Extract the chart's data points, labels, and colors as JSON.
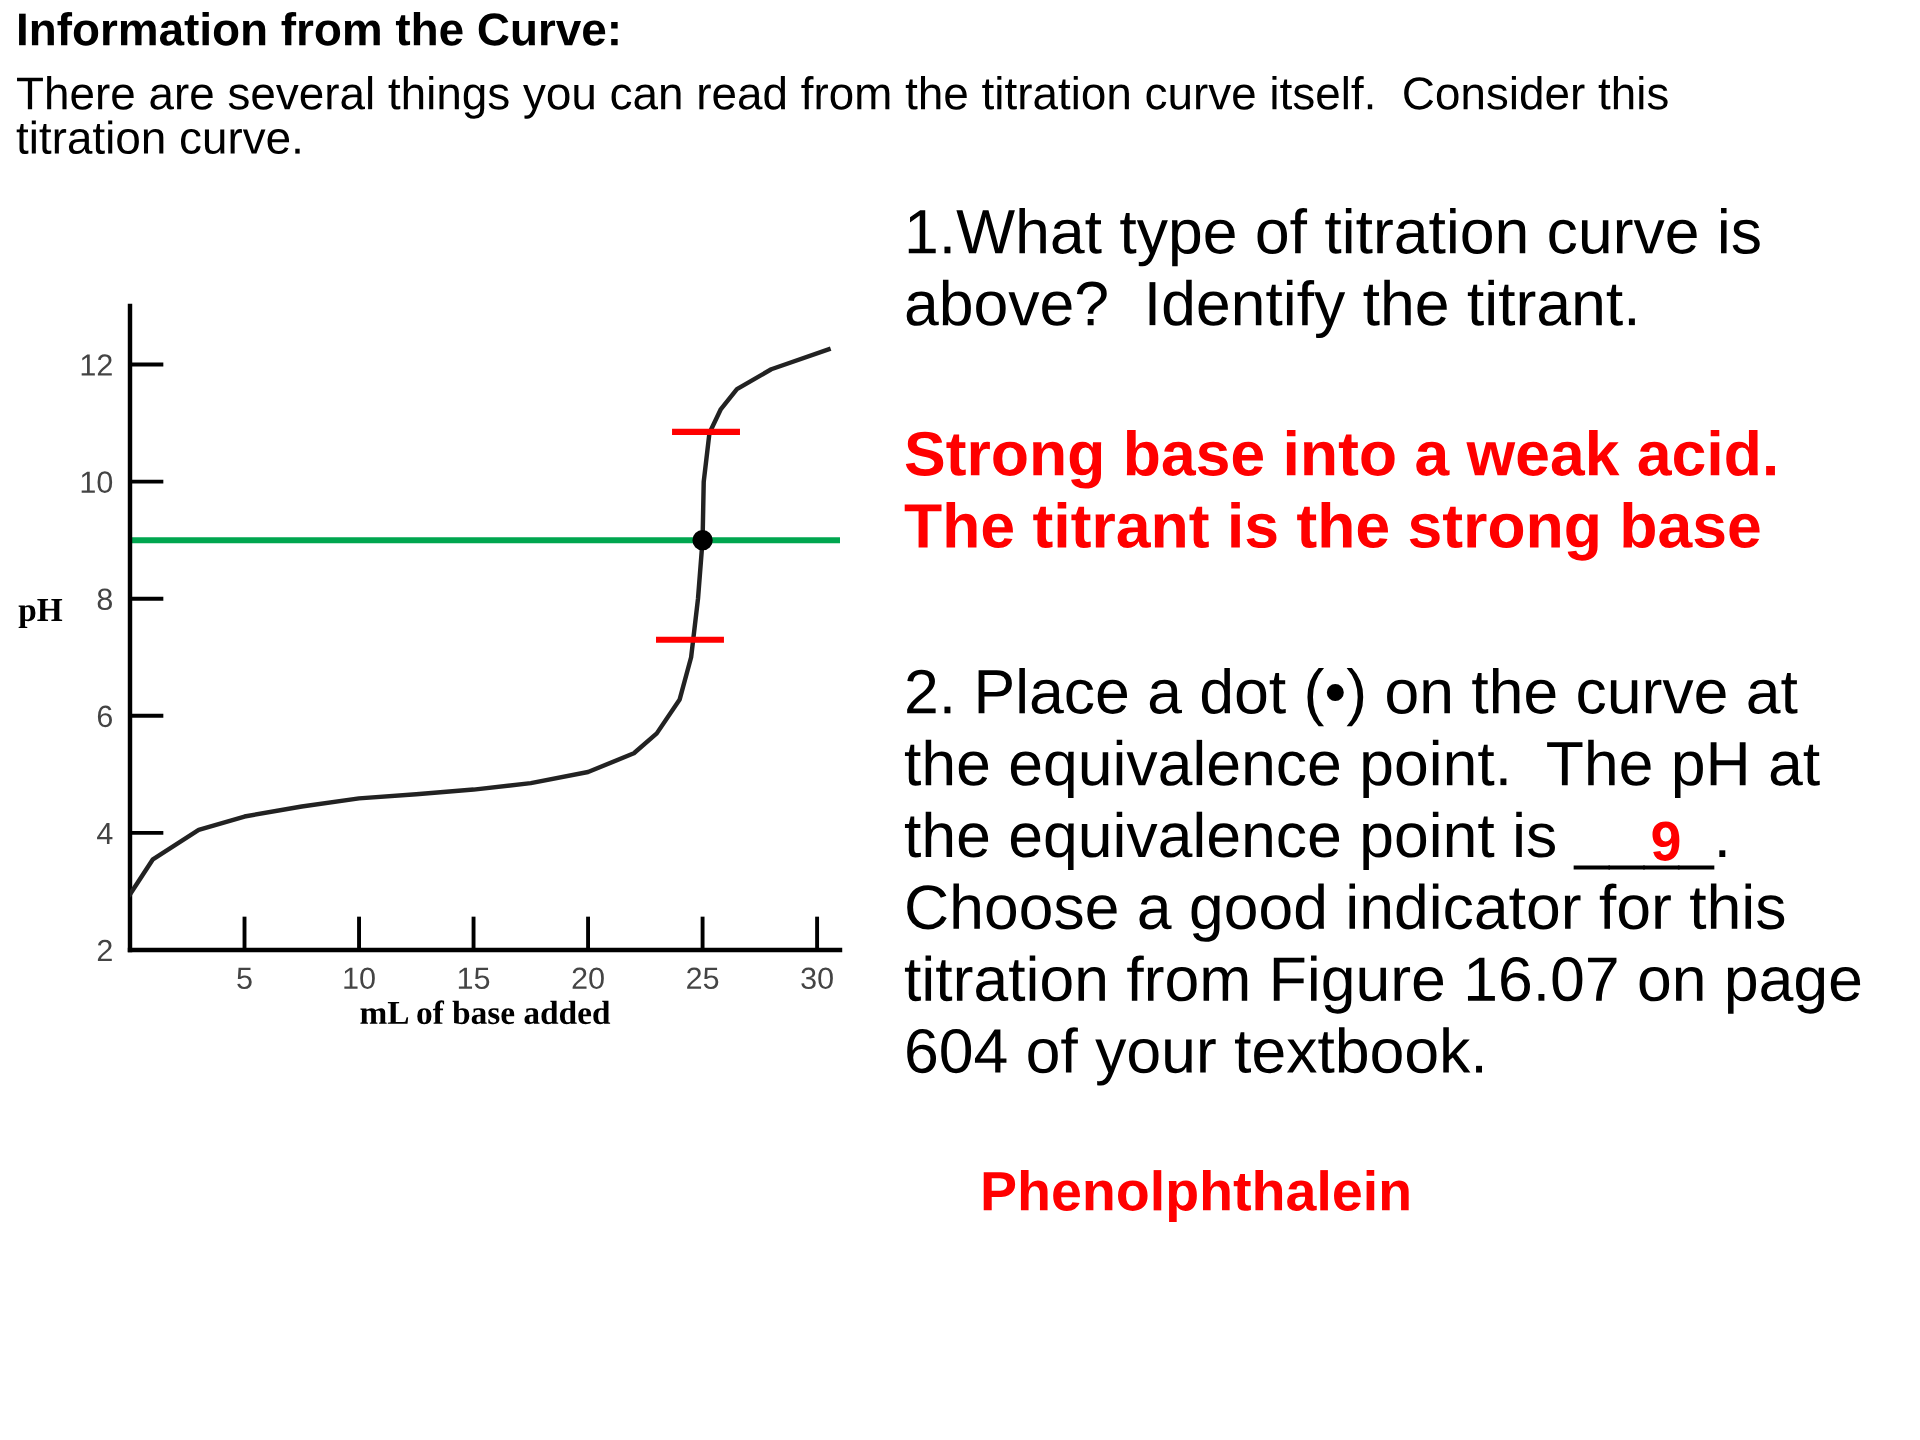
{
  "chart_data": {
    "type": "line",
    "title": "Information from the Curve:",
    "subtitle": "There are several things you can read from the titration curve itself.  Consider this\ntitration curve.",
    "xlabel": "mL of base added",
    "ylabel": "pH",
    "xlim": [
      0,
      31
    ],
    "ylim": [
      2,
      13
    ],
    "xticks": [
      5,
      10,
      15,
      20,
      25,
      30
    ],
    "yticks": [
      2,
      4,
      6,
      8,
      10,
      12
    ],
    "grid": false,
    "legend": false,
    "marker": "none",
    "line_style": "solid",
    "series": [
      {
        "color": "#222222",
        "x": [
          0,
          1,
          2,
          3,
          5,
          7.5,
          10,
          12.5,
          15,
          17.5,
          20,
          22,
          23,
          24,
          24.5,
          24.8,
          25,
          25.05,
          25.3,
          25.8,
          26.5,
          28,
          30.5
        ],
        "values": [
          2.95,
          3.55,
          3.8,
          4.05,
          4.28,
          4.45,
          4.59,
          4.66,
          4.74,
          4.85,
          5.04,
          5.36,
          5.7,
          6.28,
          7.0,
          8.0,
          9.0,
          10.0,
          10.83,
          11.24,
          11.58,
          11.92,
          12.26
        ]
      },
      {
        "type": "line",
        "color": "#ff0000",
        "x": [
          23.8,
          26.5
        ],
        "values": [
          10.85,
          10.85
        ]
      },
      {
        "type": "line",
        "color": "#ff0000",
        "x": [
          23.1,
          25.8
        ],
        "values": [
          7.3,
          7.3
        ]
      },
      {
        "type": "scatter",
        "marker": "circle",
        "color": "#000000",
        "x": [
          25
        ],
        "values": [
          9.0
        ]
      }
    ],
    "ref_lines": [
      {
        "axis": "y",
        "value": 9,
        "color": "#00a64f",
        "line_style": "solid"
      }
    ],
    "annotations": [
      "1.What type of titration curve is\nabove?  Identify the titrant.",
      "Strong base into a weak acid.\nThe titrant is the strong base",
      "2. Place a dot (•) on the curve at\nthe equivalence point.  The pH at\nthe equivalence point is ____.\nChoose a good indicator for this\ntitration from Figure 16.07 on page\n604 of your textbook.",
      "9",
      "Phenolphthalein"
    ]
  }
}
